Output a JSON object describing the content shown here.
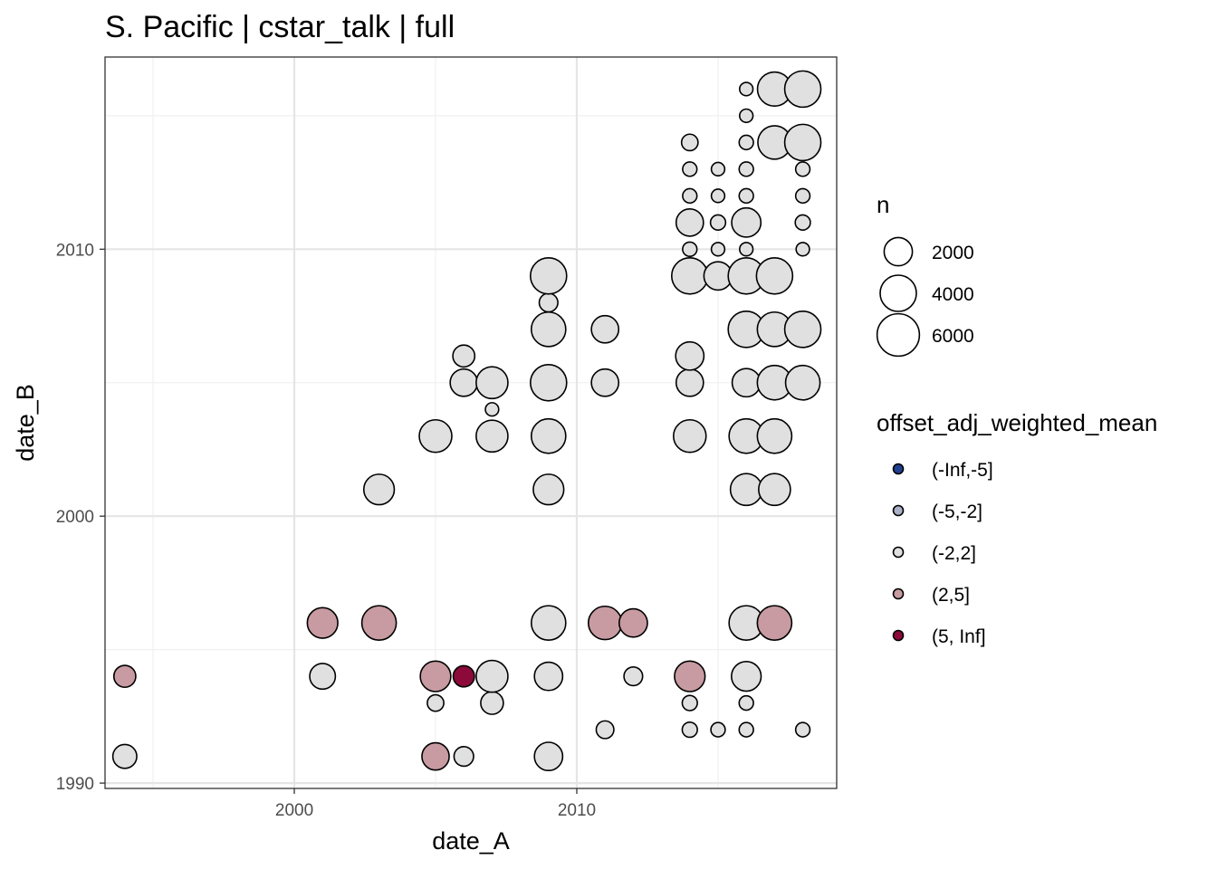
{
  "chart_data": {
    "type": "scatter",
    "title": "S. Pacific | cstar_talk | full",
    "xlabel": "date_A",
    "ylabel": "date_B",
    "xlim": [
      1993.3,
      2019.2
    ],
    "ylim": [
      1989.8,
      2017.2
    ],
    "x_ticks": [
      2000,
      2010
    ],
    "x_tick_labels": [
      "2000",
      "2010"
    ],
    "y_ticks": [
      1990,
      2000,
      2010
    ],
    "y_tick_labels": [
      "1990",
      "2000",
      "2010"
    ],
    "x_minor": [
      1995,
      2005,
      2015
    ],
    "y_minor": [
      1995,
      2005,
      2015
    ],
    "grid": true,
    "size_legend": {
      "title": "n",
      "entries": [
        {
          "label": "2000",
          "n": 2000
        },
        {
          "label": "4000",
          "n": 4000
        },
        {
          "label": "6000",
          "n": 6000
        }
      ]
    },
    "color_legend": {
      "title": "offset_adj_weighted_mean",
      "entries": [
        {
          "label": "(-Inf,-5]",
          "color": "#1f3f8f"
        },
        {
          "label": "(-5,-2]",
          "color": "#aab0c8"
        },
        {
          "label": "(-2,2]",
          "color": "#e0e0e0"
        },
        {
          "label": "(2,5]",
          "color": "#c79ba1"
        },
        {
          "label": "(5, Inf]",
          "color": "#8b0a3a"
        }
      ]
    },
    "points": [
      {
        "x": 1994,
        "y": 1991,
        "n": 1200,
        "cat": "(-2,2]"
      },
      {
        "x": 1994,
        "y": 1994,
        "n": 900,
        "cat": "(2,5]"
      },
      {
        "x": 2001,
        "y": 1994,
        "n": 1500,
        "cat": "(-2,2]"
      },
      {
        "x": 2001,
        "y": 1996,
        "n": 2500,
        "cat": "(2,5]"
      },
      {
        "x": 2003,
        "y": 1996,
        "n": 3500,
        "cat": "(2,5]"
      },
      {
        "x": 2003,
        "y": 2001,
        "n": 2500,
        "cat": "(-2,2]"
      },
      {
        "x": 2005,
        "y": 1991,
        "n": 1800,
        "cat": "(2,5]"
      },
      {
        "x": 2005,
        "y": 1993,
        "n": 300,
        "cat": "(-2,2]"
      },
      {
        "x": 2005,
        "y": 1994,
        "n": 2500,
        "cat": "(2,5]"
      },
      {
        "x": 2005,
        "y": 2003,
        "n": 3000,
        "cat": "(-2,2]"
      },
      {
        "x": 2006,
        "y": 1991,
        "n": 600,
        "cat": "(-2,2]"
      },
      {
        "x": 2006,
        "y": 1994,
        "n": 800,
        "cat": "(5, Inf]"
      },
      {
        "x": 2006,
        "y": 2005,
        "n": 1800,
        "cat": "(-2,2]"
      },
      {
        "x": 2006,
        "y": 2006,
        "n": 900,
        "cat": "(-2,2]"
      },
      {
        "x": 2007,
        "y": 1993,
        "n": 1000,
        "cat": "(-2,2]"
      },
      {
        "x": 2007,
        "y": 1994,
        "n": 2800,
        "cat": "(-2,2]"
      },
      {
        "x": 2007,
        "y": 2003,
        "n": 2800,
        "cat": "(-2,2]"
      },
      {
        "x": 2007,
        "y": 2004,
        "n": 100,
        "cat": "(-2,2]"
      },
      {
        "x": 2007,
        "y": 2005,
        "n": 2800,
        "cat": "(-2,2]"
      },
      {
        "x": 2009,
        "y": 1991,
        "n": 2000,
        "cat": "(-2,2]"
      },
      {
        "x": 2009,
        "y": 1994,
        "n": 2000,
        "cat": "(-2,2]"
      },
      {
        "x": 2009,
        "y": 1996,
        "n": 3500,
        "cat": "(-2,2]"
      },
      {
        "x": 2009,
        "y": 2001,
        "n": 2500,
        "cat": "(-2,2]"
      },
      {
        "x": 2009,
        "y": 2003,
        "n": 3500,
        "cat": "(-2,2]"
      },
      {
        "x": 2009,
        "y": 2005,
        "n": 4000,
        "cat": "(-2,2]"
      },
      {
        "x": 2009,
        "y": 2007,
        "n": 3500,
        "cat": "(-2,2]"
      },
      {
        "x": 2009,
        "y": 2008,
        "n": 500,
        "cat": "(-2,2]"
      },
      {
        "x": 2009,
        "y": 2009,
        "n": 4000,
        "cat": "(-2,2]"
      },
      {
        "x": 2011,
        "y": 1992,
        "n": 400,
        "cat": "(-2,2]"
      },
      {
        "x": 2011,
        "y": 1996,
        "n": 3200,
        "cat": "(2,5]"
      },
      {
        "x": 2011,
        "y": 2005,
        "n": 1800,
        "cat": "(-2,2]"
      },
      {
        "x": 2011,
        "y": 2007,
        "n": 1800,
        "cat": "(-2,2]"
      },
      {
        "x": 2012,
        "y": 1994,
        "n": 500,
        "cat": "(-2,2]"
      },
      {
        "x": 2012,
        "y": 1996,
        "n": 2000,
        "cat": "(2,5]"
      },
      {
        "x": 2014,
        "y": 1992,
        "n": 200,
        "cat": "(-2,2]"
      },
      {
        "x": 2014,
        "y": 1993,
        "n": 200,
        "cat": "(-2,2]"
      },
      {
        "x": 2014,
        "y": 1994,
        "n": 2500,
        "cat": "(2,5]"
      },
      {
        "x": 2014,
        "y": 2003,
        "n": 3000,
        "cat": "(-2,2]"
      },
      {
        "x": 2014,
        "y": 2005,
        "n": 1800,
        "cat": "(-2,2]"
      },
      {
        "x": 2014,
        "y": 2006,
        "n": 2000,
        "cat": "(-2,2]"
      },
      {
        "x": 2014,
        "y": 2009,
        "n": 4000,
        "cat": "(-2,2]"
      },
      {
        "x": 2014,
        "y": 2010,
        "n": 150,
        "cat": "(-2,2]"
      },
      {
        "x": 2014,
        "y": 2011,
        "n": 1800,
        "cat": "(-2,2]"
      },
      {
        "x": 2014,
        "y": 2012,
        "n": 150,
        "cat": "(-2,2]"
      },
      {
        "x": 2014,
        "y": 2013,
        "n": 150,
        "cat": "(-2,2]"
      },
      {
        "x": 2014,
        "y": 2014,
        "n": 300,
        "cat": "(-2,2]"
      },
      {
        "x": 2015,
        "y": 1992,
        "n": 150,
        "cat": "(-2,2]"
      },
      {
        "x": 2015,
        "y": 2009,
        "n": 2000,
        "cat": "(-2,2]"
      },
      {
        "x": 2015,
        "y": 2010,
        "n": 100,
        "cat": "(-2,2]"
      },
      {
        "x": 2015,
        "y": 2011,
        "n": 200,
        "cat": "(-2,2]"
      },
      {
        "x": 2015,
        "y": 2012,
        "n": 100,
        "cat": "(-2,2]"
      },
      {
        "x": 2015,
        "y": 2013,
        "n": 100,
        "cat": "(-2,2]"
      },
      {
        "x": 2016,
        "y": 1992,
        "n": 150,
        "cat": "(-2,2]"
      },
      {
        "x": 2016,
        "y": 1993,
        "n": 150,
        "cat": "(-2,2]"
      },
      {
        "x": 2016,
        "y": 1994,
        "n": 2300,
        "cat": "(-2,2]"
      },
      {
        "x": 2016,
        "y": 1996,
        "n": 3500,
        "cat": "(-2,2]"
      },
      {
        "x": 2016,
        "y": 2001,
        "n": 2800,
        "cat": "(-2,2]"
      },
      {
        "x": 2016,
        "y": 2003,
        "n": 3500,
        "cat": "(-2,2]"
      },
      {
        "x": 2016,
        "y": 2005,
        "n": 2000,
        "cat": "(-2,2]"
      },
      {
        "x": 2016,
        "y": 2007,
        "n": 4000,
        "cat": "(-2,2]"
      },
      {
        "x": 2016,
        "y": 2009,
        "n": 4000,
        "cat": "(-2,2]"
      },
      {
        "x": 2016,
        "y": 2010,
        "n": 100,
        "cat": "(-2,2]"
      },
      {
        "x": 2016,
        "y": 2011,
        "n": 2200,
        "cat": "(-2,2]"
      },
      {
        "x": 2016,
        "y": 2012,
        "n": 150,
        "cat": "(-2,2]"
      },
      {
        "x": 2016,
        "y": 2013,
        "n": 150,
        "cat": "(-2,2]"
      },
      {
        "x": 2016,
        "y": 2014,
        "n": 150,
        "cat": "(-2,2]"
      },
      {
        "x": 2016,
        "y": 2015,
        "n": 100,
        "cat": "(-2,2]"
      },
      {
        "x": 2016,
        "y": 2016,
        "n": 100,
        "cat": "(-2,2]"
      },
      {
        "x": 2017,
        "y": 1996,
        "n": 3500,
        "cat": "(2,5]"
      },
      {
        "x": 2017,
        "y": 2001,
        "n": 2800,
        "cat": "(-2,2]"
      },
      {
        "x": 2017,
        "y": 2003,
        "n": 3500,
        "cat": "(-2,2]"
      },
      {
        "x": 2017,
        "y": 2005,
        "n": 3500,
        "cat": "(-2,2]"
      },
      {
        "x": 2017,
        "y": 2007,
        "n": 3500,
        "cat": "(-2,2]"
      },
      {
        "x": 2017,
        "y": 2009,
        "n": 4000,
        "cat": "(-2,2]"
      },
      {
        "x": 2017,
        "y": 2014,
        "n": 3200,
        "cat": "(-2,2]"
      },
      {
        "x": 2017,
        "y": 2016,
        "n": 3400,
        "cat": "(-2,2]"
      },
      {
        "x": 2018,
        "y": 1992,
        "n": 150,
        "cat": "(-2,2]"
      },
      {
        "x": 2018,
        "y": 2005,
        "n": 3500,
        "cat": "(-2,2]"
      },
      {
        "x": 2018,
        "y": 2007,
        "n": 4000,
        "cat": "(-2,2]"
      },
      {
        "x": 2018,
        "y": 2010,
        "n": 100,
        "cat": "(-2,2]"
      },
      {
        "x": 2018,
        "y": 2011,
        "n": 200,
        "cat": "(-2,2]"
      },
      {
        "x": 2018,
        "y": 2012,
        "n": 150,
        "cat": "(-2,2]"
      },
      {
        "x": 2018,
        "y": 2013,
        "n": 150,
        "cat": "(-2,2]"
      },
      {
        "x": 2018,
        "y": 2014,
        "n": 4000,
        "cat": "(-2,2]"
      },
      {
        "x": 2018,
        "y": 2016,
        "n": 4000,
        "cat": "(-2,2]"
      }
    ]
  }
}
